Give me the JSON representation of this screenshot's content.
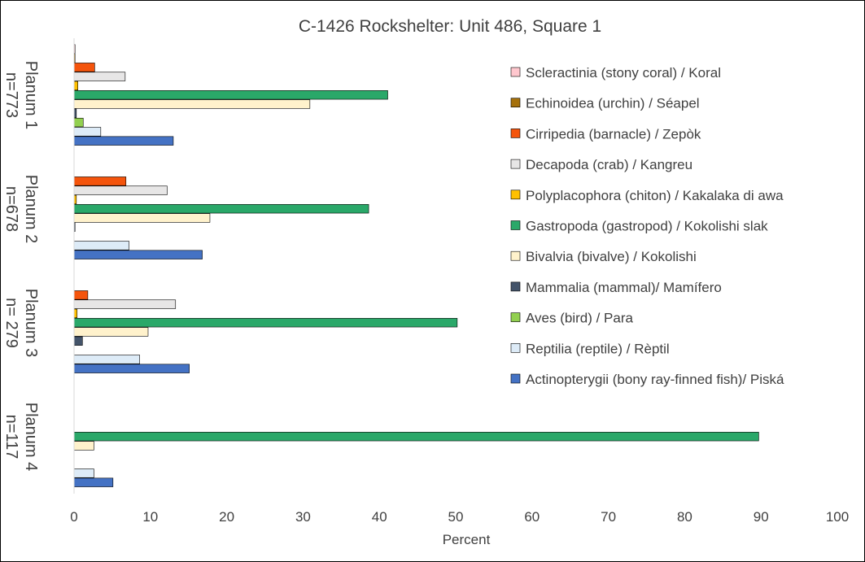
{
  "chart_data": {
    "type": "bar",
    "orientation": "horizontal",
    "title": "C-1426 Rockshelter: Unit 486, Square 1",
    "xlabel": "Percent",
    "ylabel": "",
    "xlim": [
      0,
      100
    ],
    "xticks": [
      0,
      10,
      20,
      30,
      40,
      50,
      60,
      70,
      80,
      90,
      100
    ],
    "grid": false,
    "legend_position": "right",
    "categories": [
      {
        "line1": "Planum 1",
        "line2": "n=773"
      },
      {
        "line1": "Planum 2",
        "line2": "n=678"
      },
      {
        "line1": "Planum 3",
        "line2": "n= 279"
      },
      {
        "line1": "Planum 4",
        "line2": "n=117"
      }
    ],
    "series": [
      {
        "name": "Scleractinia (stony coral) / Koral",
        "color": "#ffc7ce",
        "values": [
          0.1,
          0,
          0,
          0
        ]
      },
      {
        "name": "Echinoidea (urchin) / Séapel",
        "color": "#a5700b",
        "values": [
          0.1,
          0,
          0,
          0
        ]
      },
      {
        "name": "Cirripedia (barnacle) / Zepòk",
        "color": "#f4540c",
        "values": [
          2.7,
          6.8,
          1.8,
          0
        ]
      },
      {
        "name": "Decapoda (crab) / Kangreu",
        "color": "#e7e6e6",
        "values": [
          6.7,
          12.2,
          13.3,
          0
        ]
      },
      {
        "name": "Polyplacophora (chiton) / Kakalaka di awa",
        "color": "#ffc000",
        "values": [
          0.5,
          0.3,
          0.4,
          0
        ]
      },
      {
        "name": "Gastropoda (gastropod) / Kokolishi slak",
        "color": "#2aa869",
        "values": [
          41.1,
          38.6,
          50.2,
          89.7
        ]
      },
      {
        "name": "Bivalvia (bivalve) / Kokolishi",
        "color": "#fff2cc",
        "values": [
          30.9,
          17.8,
          9.7,
          2.6
        ]
      },
      {
        "name": "Mammalia (mammal)/ Mamífero",
        "color": "#44546a",
        "values": [
          0.3,
          0.1,
          1.1,
          0
        ]
      },
      {
        "name": "Aves (bird) / Para",
        "color": "#92d050",
        "values": [
          1.2,
          0,
          0,
          0
        ]
      },
      {
        "name": "Reptilia (reptile) / Rèptil",
        "color": "#ddebf7",
        "values": [
          3.5,
          7.2,
          8.6,
          2.6
        ]
      },
      {
        "name": "Actinopterygii (bony ray-finned fish)/ Piská",
        "color": "#4472c4",
        "values": [
          13,
          16.8,
          15.1,
          5.1
        ]
      }
    ]
  }
}
